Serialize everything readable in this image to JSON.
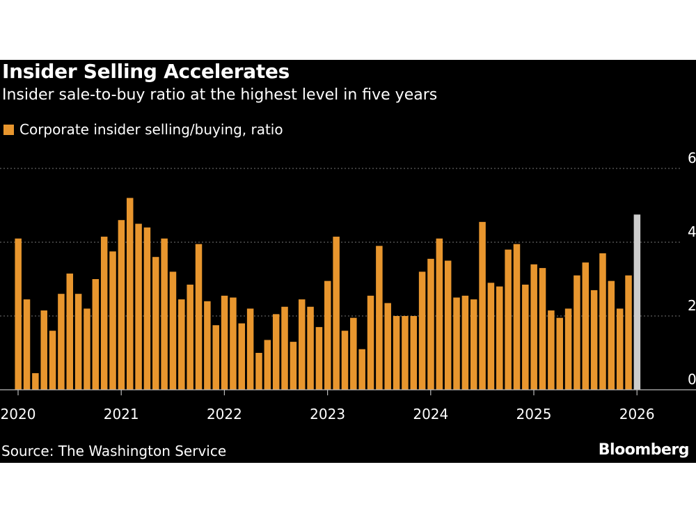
{
  "header": {
    "title": "Insider Selling Accelerates",
    "subtitle": "Insider sale-to-buy ratio at the highest level in five years"
  },
  "legend": {
    "label": "Corporate insider selling/buying, ratio",
    "color": "#e8962e"
  },
  "footer": {
    "source": "Source: The Washington Service",
    "brand": "Bloomberg"
  },
  "colors": {
    "background": "#000000",
    "bar": "#e8962e",
    "highlight_bar": "#cccccc",
    "grid": "#777777",
    "axis": "#bbbbbb"
  },
  "chart_data": {
    "type": "bar",
    "x_start": "2020-01",
    "frequency": "monthly",
    "xlim": [
      "2020-01",
      "2026-12"
    ],
    "x_tick_labels": [
      "2020",
      "2021",
      "2022",
      "2023",
      "2024",
      "2025",
      "2026"
    ],
    "y_tick_labels": [
      "0",
      "2",
      "4",
      "6"
    ],
    "ylim": [
      0,
      6
    ],
    "grid": "horizontal dotted",
    "series": [
      {
        "name": "Corporate insider selling/buying, ratio",
        "values": [
          4.1,
          2.45,
          0.45,
          2.15,
          1.6,
          2.6,
          3.15,
          2.6,
          2.2,
          3.0,
          4.15,
          3.75,
          4.6,
          5.2,
          4.5,
          4.4,
          3.6,
          4.1,
          3.2,
          2.45,
          2.85,
          3.95,
          2.4,
          1.75,
          2.55,
          2.5,
          1.8,
          2.2,
          1.0,
          1.35,
          2.05,
          2.25,
          1.3,
          2.45,
          2.25,
          1.7,
          2.95,
          4.15,
          1.6,
          1.95,
          1.1,
          2.55,
          3.9,
          2.35,
          2.0,
          2.0,
          2.0,
          3.2,
          3.55,
          4.1,
          3.5,
          2.5,
          2.55,
          2.45,
          4.55,
          2.9,
          2.8,
          3.8,
          3.95,
          2.85,
          3.4,
          3.3,
          2.15,
          1.95,
          2.2,
          3.1,
          3.45,
          2.7,
          3.7,
          2.95,
          2.2,
          3.1,
          4.75
        ]
      }
    ],
    "highlight_last": true
  }
}
